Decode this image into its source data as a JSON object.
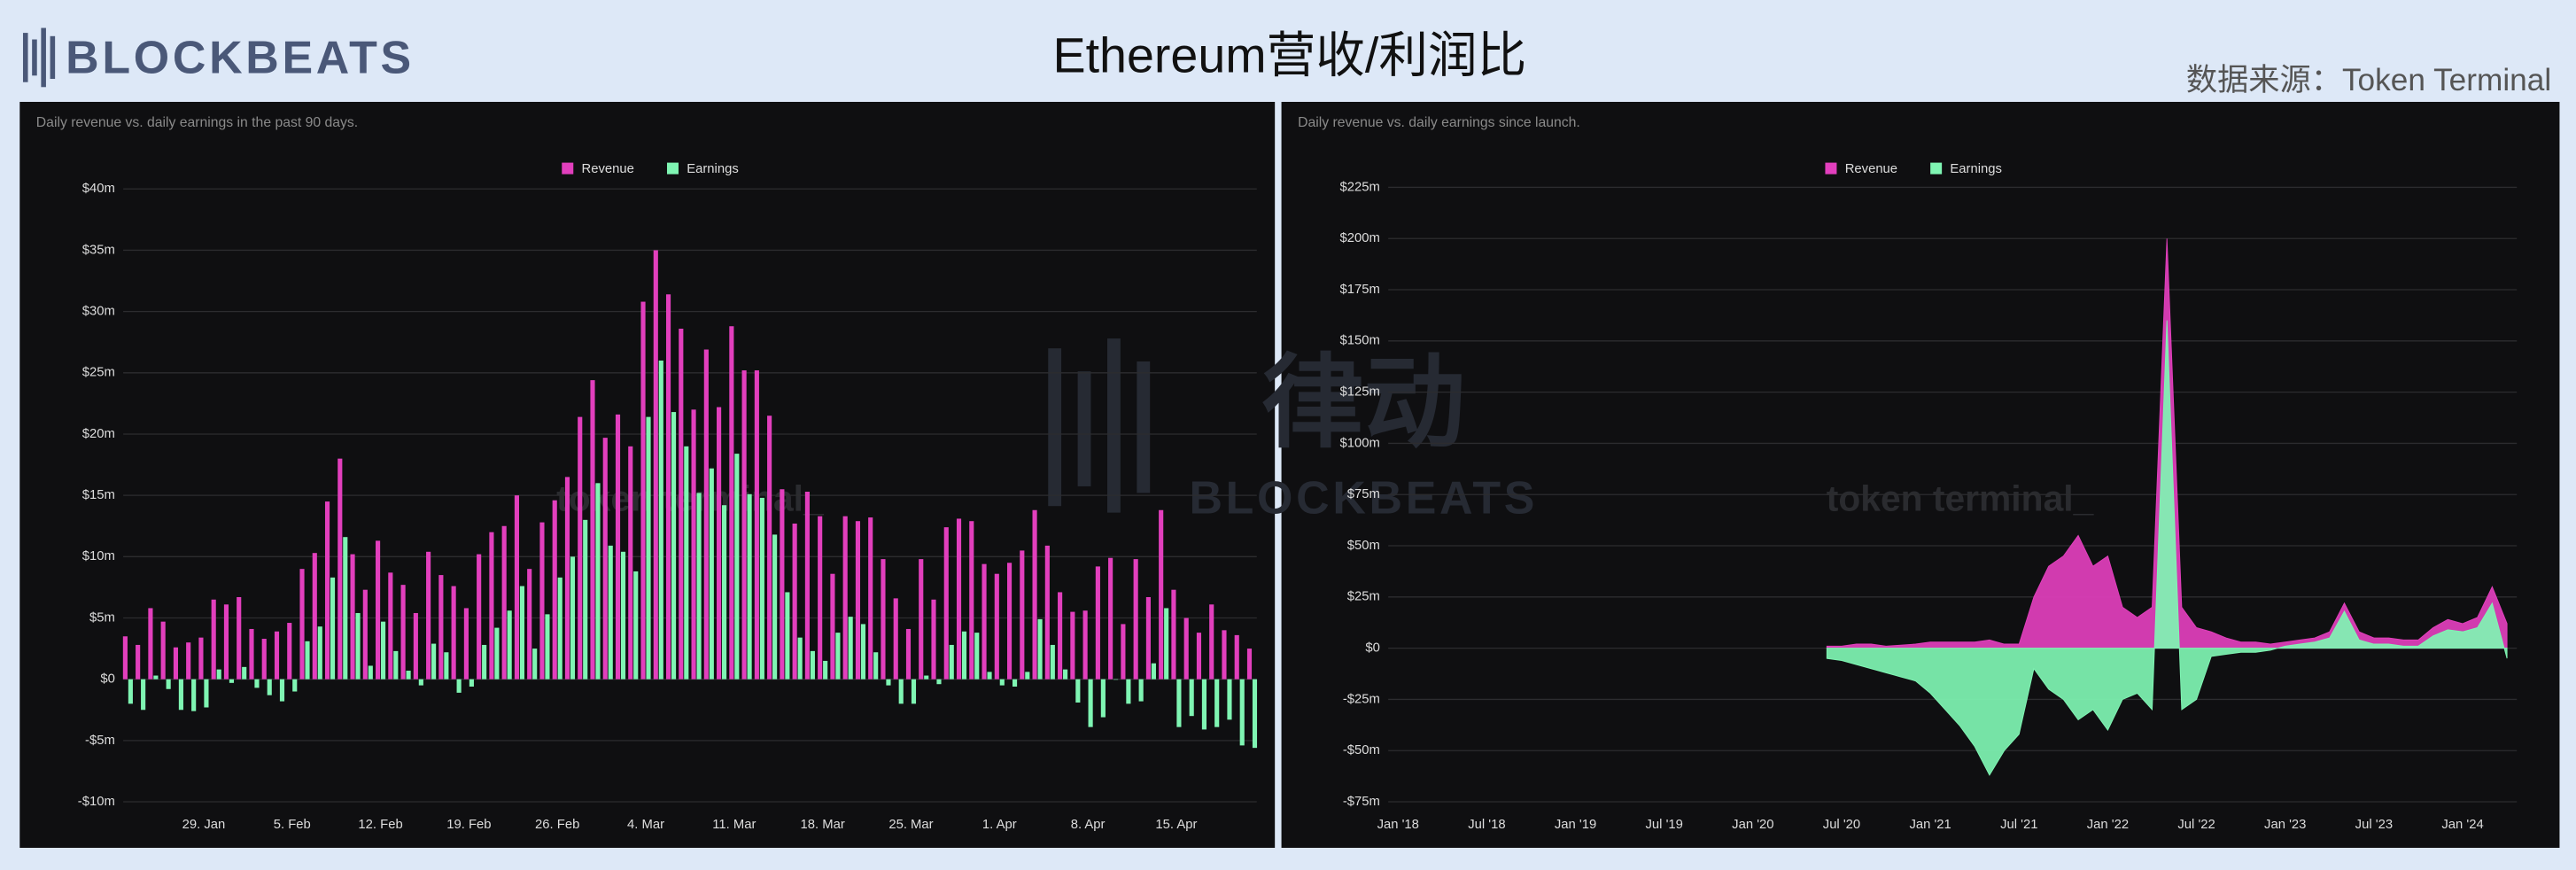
{
  "header": {
    "logo": "BLOCKBEATS",
    "title": "Ethereum营收/利润比",
    "source": "数据来源：Token Terminal",
    "watermark": {
      "cn": "律动",
      "en": "BLOCKBEATS"
    }
  },
  "chart_data": [
    {
      "type": "bar",
      "subtitle": "Daily revenue vs. daily earnings in the past 90 days.",
      "watermark": "token terminal_",
      "categories": [
        null,
        null,
        null,
        null,
        null,
        null,
        "29. Jan",
        null,
        null,
        null,
        null,
        null,
        null,
        "5. Feb",
        null,
        null,
        null,
        null,
        null,
        null,
        "12. Feb",
        null,
        null,
        null,
        null,
        null,
        null,
        "19. Feb",
        null,
        null,
        null,
        null,
        null,
        null,
        "26. Feb",
        null,
        null,
        null,
        null,
        null,
        null,
        "4. Mar",
        null,
        null,
        null,
        null,
        null,
        null,
        "11. Mar",
        null,
        null,
        null,
        null,
        null,
        null,
        "18. Mar",
        null,
        null,
        null,
        null,
        null,
        null,
        "25. Mar",
        null,
        null,
        null,
        null,
        null,
        null,
        "1. Apr",
        null,
        null,
        null,
        null,
        null,
        null,
        "8. Apr",
        null,
        null,
        null,
        null,
        null,
        null,
        "15. Apr",
        null,
        null,
        null,
        null,
        null,
        null
      ],
      "series": [
        {
          "name": "Revenue",
          "color": "#e23fbd",
          "values": [
            3.5,
            2.8,
            5.8,
            4.7,
            2.6,
            3,
            3.4,
            6.5,
            6.1,
            6.7,
            4.1,
            3.3,
            3.9,
            4.6,
            9,
            10.3,
            14.5,
            18,
            10.2,
            7.3,
            11.3,
            8.7,
            7.7,
            5.4,
            10.4,
            8.5,
            7.6,
            5.8,
            10.2,
            12,
            12.5,
            15,
            9,
            12.8,
            14.6,
            16.5,
            21.4,
            24.4,
            19.7,
            21.6,
            19,
            30.8,
            35,
            31.4,
            28.6,
            22,
            26.9,
            22.2,
            28.8,
            25.2,
            25.2,
            21.5,
            15.5,
            12.7,
            15.3,
            13.3,
            8.6,
            13.3,
            12.9,
            13.2,
            9.8,
            6.6,
            4.1,
            9.8,
            6.5,
            12.4,
            13.1,
            12.9,
            9.4,
            8.6,
            9.5,
            10.5,
            13.8,
            10.9,
            7.1,
            5.5,
            5.6,
            9.2,
            9.9,
            4.5,
            9.8,
            6.7,
            13.8,
            7.3,
            5,
            3.8,
            6.1,
            4,
            3.6,
            2.5
          ]
        },
        {
          "name": "Earnings",
          "color": "#7ff5b3",
          "values": [
            -2,
            -2.5,
            0.3,
            -0.8,
            -2.5,
            -2.6,
            -2.3,
            0.8,
            -0.3,
            1,
            -0.7,
            -1.3,
            -1.8,
            -1,
            3.1,
            4.3,
            8.3,
            11.6,
            5.4,
            1.1,
            4.7,
            2.3,
            0.7,
            -0.5,
            2.9,
            2.2,
            -1.1,
            -0.6,
            2.8,
            4.2,
            5.6,
            7.6,
            2.5,
            5.3,
            8.3,
            10,
            13,
            16,
            10.9,
            10.4,
            8.8,
            21.4,
            26,
            21.8,
            19,
            15.2,
            17.2,
            14.2,
            18.4,
            15.1,
            14.8,
            11.8,
            7.1,
            3.4,
            2.3,
            1.5,
            3.8,
            5.1,
            4.5,
            2.2,
            -0.5,
            -2,
            -2,
            0.3,
            -0.4,
            2.8,
            3.9,
            3.8,
            0.6,
            -0.5,
            -0.6,
            0.6,
            4.9,
            2.8,
            0.8,
            -1.9,
            -3.9,
            -3.1,
            0,
            -2,
            -1.8,
            1.3,
            5.8,
            -3.9,
            -3,
            -4.1,
            -3.9,
            -3.3,
            -5.4,
            -5.6
          ]
        }
      ],
      "ylim": [
        -10,
        40
      ],
      "yticks": [
        {
          "value": -10,
          "label": "-$10m"
        },
        {
          "value": -5,
          "label": "-$5m"
        },
        {
          "value": 0,
          "label": "$0"
        },
        {
          "value": 5,
          "label": "$5m"
        },
        {
          "value": 10,
          "label": "$10m"
        },
        {
          "value": 15,
          "label": "$15m"
        },
        {
          "value": 20,
          "label": "$20m"
        },
        {
          "value": 25,
          "label": "$25m"
        },
        {
          "value": 30,
          "label": "$30m"
        },
        {
          "value": 35,
          "label": "$35m"
        },
        {
          "value": 40,
          "label": "$40m"
        }
      ],
      "grid": true
    },
    {
      "type": "area",
      "subtitle": "Daily revenue vs. daily earnings since launch.",
      "watermark": "token terminal_",
      "categories": [
        "Jan '18",
        null,
        null,
        null,
        null,
        null,
        "Jul '18",
        null,
        null,
        null,
        null,
        null,
        "Jan '19",
        null,
        null,
        null,
        null,
        null,
        "Jul '19",
        null,
        null,
        null,
        null,
        null,
        "Jan '20",
        null,
        null,
        null,
        null,
        null,
        "Jul '20",
        null,
        null,
        null,
        null,
        null,
        "Jan '21",
        null,
        null,
        null,
        null,
        null,
        "Jul '21",
        null,
        null,
        null,
        null,
        null,
        "Jan '22",
        null,
        null,
        null,
        null,
        null,
        "Jul '22",
        null,
        null,
        null,
        null,
        null,
        "Jan '23",
        null,
        null,
        null,
        null,
        null,
        "Jul '23",
        null,
        null,
        null,
        null,
        null,
        "Jan '24",
        null,
        null,
        null
      ],
      "series": [
        {
          "name": "Revenue",
          "color": "#e23fbd",
          "values": [
            null,
            null,
            null,
            null,
            null,
            null,
            null,
            null,
            null,
            null,
            null,
            null,
            null,
            null,
            null,
            null,
            null,
            null,
            null,
            null,
            null,
            null,
            null,
            null,
            null,
            null,
            null,
            null,
            null,
            1,
            1,
            2,
            2,
            1,
            1.5,
            2,
            3,
            3,
            3,
            3,
            4,
            2,
            2,
            25,
            40,
            45,
            55,
            40,
            45,
            20,
            15,
            20,
            200,
            20,
            10,
            8,
            5,
            3,
            3,
            2,
            3,
            4,
            5,
            8,
            22,
            8,
            5,
            5,
            4,
            4,
            10,
            14,
            12,
            15,
            30,
            12
          ]
        },
        {
          "name": "Earnings",
          "color": "#7ff5b3",
          "values": [
            null,
            null,
            null,
            null,
            null,
            null,
            null,
            null,
            null,
            null,
            null,
            null,
            null,
            null,
            null,
            null,
            null,
            null,
            null,
            null,
            null,
            null,
            null,
            null,
            null,
            null,
            null,
            null,
            null,
            -5,
            -6,
            -8,
            -10,
            -12,
            -14,
            -16,
            -22,
            -30,
            -38,
            -48,
            -62,
            -50,
            -42,
            -10,
            -20,
            -25,
            -35,
            -30,
            -40,
            -25,
            -22,
            -30,
            160,
            -30,
            -25,
            -4,
            -3,
            -2,
            -2,
            -1,
            1,
            2,
            3,
            5,
            18,
            4,
            2,
            2,
            1,
            1,
            6,
            9,
            8,
            10,
            22,
            -5
          ]
        }
      ],
      "ylim": [
        -75,
        225
      ],
      "yticks": [
        {
          "value": -75,
          "label": "-$75m"
        },
        {
          "value": -50,
          "label": "-$50m"
        },
        {
          "value": -25,
          "label": "-$25m"
        },
        {
          "value": 0,
          "label": "$0"
        },
        {
          "value": 25,
          "label": "$25m"
        },
        {
          "value": 50,
          "label": "$50m"
        },
        {
          "value": 75,
          "label": "$75m"
        },
        {
          "value": 100,
          "label": "$100m"
        },
        {
          "value": 125,
          "label": "$125m"
        },
        {
          "value": 150,
          "label": "$150m"
        },
        {
          "value": 175,
          "label": "$175m"
        },
        {
          "value": 200,
          "label": "$200m"
        },
        {
          "value": 225,
          "label": "$225m"
        }
      ],
      "grid": true
    }
  ]
}
